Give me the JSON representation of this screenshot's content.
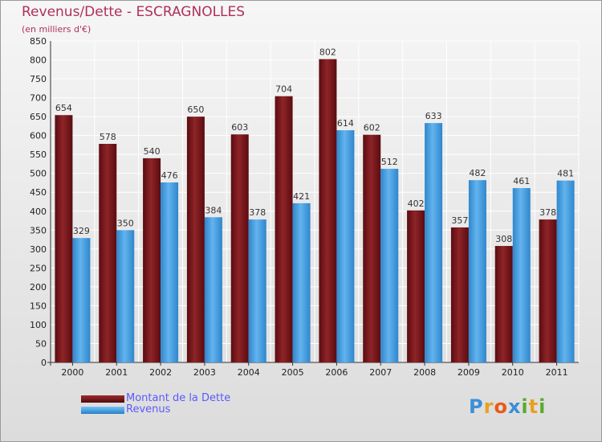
{
  "title": "Revenus/Dette - ESCRAGNOLLES",
  "subtitle": "(en milliers d'€)",
  "colors": {
    "debt": "#7a1a1e",
    "revenue": "#4aa3e6",
    "title": "#b03058",
    "legend_text": "#5a5aff"
  },
  "legend": {
    "debt": "Montant de la Dette",
    "revenue": "Revenus"
  },
  "logo": {
    "text": "Proxiti"
  },
  "chart_data": {
    "type": "bar",
    "title": "Revenus/Dette - ESCRAGNOLLES",
    "ylabel": "(en milliers d'€)",
    "xlabel": "",
    "categories": [
      "2000",
      "2001",
      "2002",
      "2003",
      "2004",
      "2005",
      "2006",
      "2007",
      "2008",
      "2009",
      "2010",
      "2011"
    ],
    "series": [
      {
        "name": "Montant de la Dette",
        "values": [
          654,
          578,
          540,
          650,
          603,
          704,
          802,
          602,
          402,
          357,
          308,
          378
        ]
      },
      {
        "name": "Revenus",
        "values": [
          329,
          350,
          476,
          384,
          378,
          421,
          614,
          512,
          633,
          482,
          461,
          481
        ]
      }
    ],
    "ylim": [
      0,
      850
    ],
    "ytick_step": 50,
    "grid": true,
    "legend_position": "bottom-left"
  }
}
